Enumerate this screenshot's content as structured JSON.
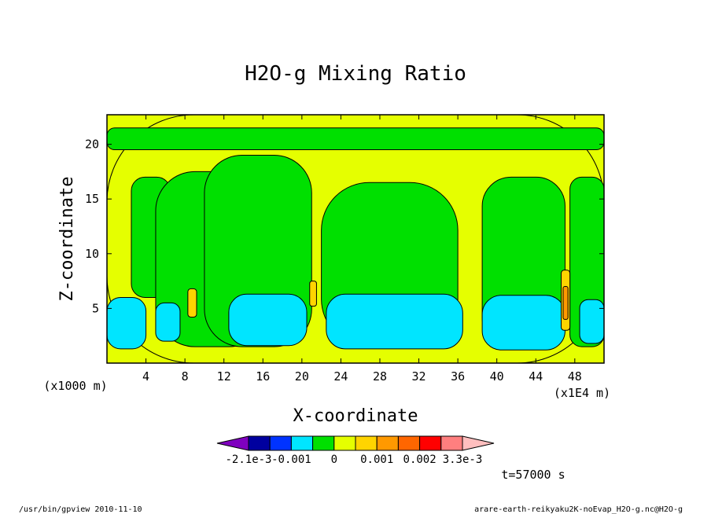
{
  "chart_data": {
    "type": "heatmap",
    "title": "H2O-g Mixing Ratio",
    "xlabel": "X-coordinate",
    "ylabel": "Z-coordinate",
    "x_scale_label": "(x1E4 m)",
    "y_scale_label": "(x1000 m)",
    "x_ticks": [
      4,
      8,
      12,
      16,
      20,
      24,
      28,
      32,
      36,
      40,
      44,
      48
    ],
    "y_ticks": [
      5,
      10,
      15,
      20
    ],
    "xlim": [
      0,
      51
    ],
    "ylim": [
      0,
      22.7
    ],
    "time_label": "t=57000 s",
    "colorbar": {
      "labels": [
        "-2.1e-3",
        "-0.001",
        "0",
        "0.001",
        "0.002",
        "3.3e-3"
      ],
      "colors": [
        "#7f00bf",
        "#00009f",
        "#0033ff",
        "#00e5ff",
        "#00e000",
        "#e5ff00",
        "#ffd400",
        "#ff9900",
        "#ff6600",
        "#ff0000",
        "#ff7f7f",
        "#ffbfbf"
      ]
    },
    "regions": [
      {
        "level": "0 to 0.0005",
        "color": "#00e000",
        "areas": [
          {
            "x0": 2.5,
            "x1": 6.5,
            "z0": 6,
            "z1": 17
          },
          {
            "x0": 5,
            "x1": 16.5,
            "z0": 1.5,
            "z1": 17.5
          },
          {
            "x0": 10,
            "x1": 21,
            "z0": 1.5,
            "z1": 19
          },
          {
            "x0": 22,
            "x1": 36,
            "z0": 1.5,
            "z1": 16.5
          },
          {
            "x0": 38.5,
            "x1": 47,
            "z0": 1.5,
            "z1": 17
          },
          {
            "x0": 47.5,
            "x1": 51,
            "z0": 1.5,
            "z1": 17
          },
          {
            "x0": 0,
            "x1": 51,
            "z0": 19.5,
            "z1": 21.5
          }
        ]
      },
      {
        "level": "-0.0005 to 0",
        "color": "#00e5ff",
        "areas": [
          {
            "x0": 0,
            "x1": 4,
            "z0": 1.3,
            "z1": 6
          },
          {
            "x0": 5,
            "x1": 7.5,
            "z0": 2,
            "z1": 5.5
          },
          {
            "x0": 12.5,
            "x1": 20.5,
            "z0": 1.6,
            "z1": 6.3
          },
          {
            "x0": 22.5,
            "x1": 36.5,
            "z0": 1.3,
            "z1": 6.3
          },
          {
            "x0": 38.5,
            "x1": 47,
            "z0": 1.2,
            "z1": 6.2
          },
          {
            "x0": 48.5,
            "x1": 51,
            "z0": 1.8,
            "z1": 5.8
          }
        ]
      },
      {
        "level": "0.0005 to 0.001",
        "color": "#e5ff00",
        "areas": [
          {
            "x0": 0,
            "x1": 51,
            "z0": 0,
            "z1": 22.7
          }
        ]
      },
      {
        "level": "0.001 to 0.0015",
        "color": "#ffd400",
        "areas": [
          {
            "x0": 8.3,
            "x1": 9.2,
            "z0": 4.2,
            "z1": 6.8
          },
          {
            "x0": 20.8,
            "x1": 21.5,
            "z0": 5.2,
            "z1": 7.5
          },
          {
            "x0": 46.6,
            "x1": 47.5,
            "z0": 3,
            "z1": 8.5
          }
        ]
      },
      {
        "level": "0.0015 to 0.002",
        "color": "#ff9900",
        "areas": [
          {
            "x0": 46.8,
            "x1": 47.3,
            "z0": 4,
            "z1": 7
          }
        ]
      }
    ]
  },
  "footer": {
    "left": "/usr/bin/gpview  2010-11-10",
    "right": "arare-earth-reikyaku2K-noEvap_H2O-g.nc@H2O-g"
  }
}
